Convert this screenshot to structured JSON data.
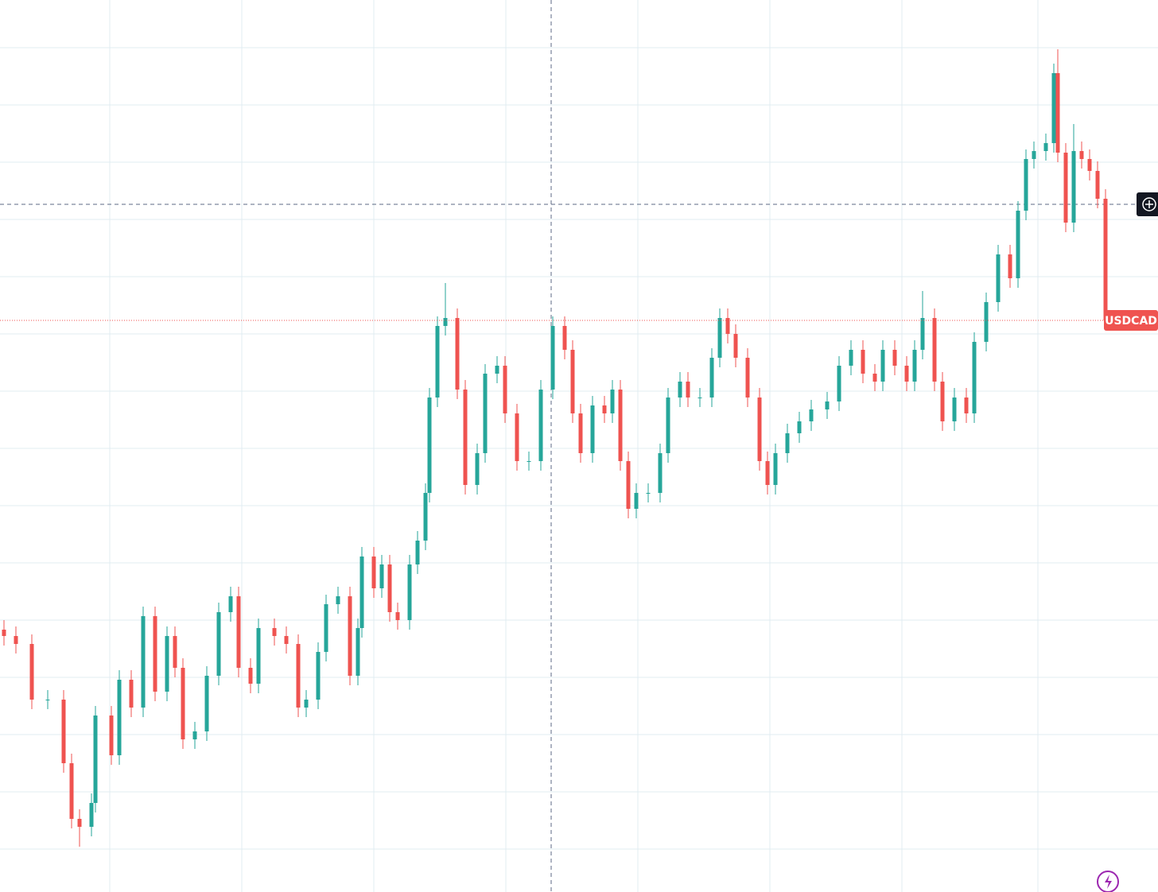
{
  "chart_data": {
    "type": "candlestick",
    "symbol": "USDCAD",
    "up_color": "#26a69a",
    "down_color": "#ef5350",
    "grid": true,
    "xlim": [
      0,
      1456
    ],
    "ylim": [
      0,
      1122
    ],
    "xticks": [
      138,
      304,
      470,
      636,
      802,
      968,
      1134,
      1305
    ],
    "yticks": [
      1062,
      990,
      918,
      846,
      774,
      702,
      630,
      558,
      486,
      414,
      342,
      270,
      198,
      126,
      54
    ],
    "x": [
      5,
      20,
      40,
      60,
      80,
      90,
      100,
      115,
      120,
      140,
      150,
      165,
      180,
      195,
      210,
      220,
      230,
      245,
      260,
      275,
      290,
      300,
      315,
      325,
      345,
      360,
      375,
      385,
      400,
      410,
      425,
      440,
      450,
      455,
      470,
      480,
      490,
      500,
      515,
      525,
      535,
      540,
      550,
      560,
      575,
      585,
      600,
      610,
      625,
      635,
      650,
      665,
      680,
      695,
      710,
      720,
      730,
      745,
      760,
      770,
      780,
      790,
      800,
      815,
      830,
      840,
      855,
      865,
      880,
      895,
      905,
      915,
      925,
      940,
      955,
      965,
      975,
      990,
      1005,
      1020,
      1040,
      1055,
      1070,
      1085,
      1100,
      1110,
      1125,
      1140,
      1150,
      1160,
      1175,
      1185,
      1200,
      1215,
      1225,
      1240,
      1255,
      1270,
      1280,
      1290,
      1300,
      1315,
      1325,
      1330,
      1340,
      1350,
      1360,
      1370,
      1380,
      1390
    ],
    "open": [
      330,
      322,
      312,
      242,
      242,
      162,
      92,
      82,
      112,
      222,
      172,
      267,
      232,
      347,
      252,
      322,
      282,
      192,
      202,
      272,
      352,
      372,
      282,
      262,
      332,
      322,
      312,
      232,
      242,
      302,
      362,
      372,
      272,
      332,
      422,
      382,
      412,
      352,
      342,
      412,
      442,
      502,
      622,
      712,
      722,
      632,
      512,
      552,
      652,
      662,
      602,
      542,
      542,
      632,
      712,
      682,
      602,
      552,
      612,
      602,
      632,
      542,
      482,
      502,
      502,
      552,
      622,
      642,
      622,
      622,
      672,
      722,
      702,
      672,
      622,
      542,
      512,
      552,
      577,
      592,
      607,
      617,
      662,
      682,
      652,
      642,
      682,
      662,
      642,
      682,
      722,
      642,
      592,
      622,
      602,
      692,
      742,
      802,
      772,
      857,
      922,
      932,
      942,
      1030,
      930,
      842,
      932,
      922,
      907,
      872
    ],
    "high": [
      342,
      334,
      324,
      254,
      254,
      174,
      104,
      124,
      234,
      234,
      279,
      279,
      359,
      359,
      334,
      334,
      294,
      214,
      284,
      364,
      384,
      384,
      294,
      344,
      344,
      334,
      324,
      254,
      314,
      374,
      384,
      384,
      344,
      434,
      434,
      424,
      424,
      364,
      424,
      454,
      514,
      634,
      724,
      766,
      734,
      644,
      564,
      664,
      674,
      674,
      614,
      554,
      644,
      724,
      724,
      694,
      614,
      624,
      624,
      644,
      644,
      554,
      514,
      514,
      564,
      634,
      654,
      654,
      634,
      684,
      734,
      734,
      714,
      684,
      634,
      554,
      564,
      589,
      604,
      619,
      629,
      674,
      694,
      694,
      664,
      694,
      694,
      674,
      694,
      756,
      734,
      654,
      634,
      634,
      704,
      754,
      814,
      814,
      869,
      934,
      944,
      954,
      1042,
      1060,
      942,
      966,
      944,
      934,
      919,
      884
    ],
    "low": [
      310,
      300,
      230,
      230,
      150,
      80,
      57,
      70,
      100,
      160,
      160,
      220,
      220,
      240,
      240,
      270,
      180,
      180,
      190,
      260,
      340,
      270,
      250,
      250,
      310,
      300,
      220,
      220,
      230,
      290,
      350,
      260,
      260,
      320,
      370,
      370,
      340,
      330,
      330,
      400,
      430,
      490,
      610,
      700,
      620,
      500,
      500,
      540,
      640,
      590,
      530,
      530,
      530,
      620,
      670,
      590,
      540,
      540,
      590,
      590,
      530,
      470,
      470,
      490,
      490,
      540,
      610,
      610,
      610,
      610,
      660,
      690,
      660,
      610,
      530,
      500,
      500,
      540,
      565,
      580,
      595,
      605,
      650,
      640,
      630,
      630,
      650,
      630,
      630,
      670,
      630,
      580,
      580,
      590,
      590,
      680,
      730,
      760,
      760,
      845,
      910,
      920,
      930,
      918,
      830,
      830,
      910,
      895,
      860,
      707
    ],
    "close": [
      322,
      312,
      242,
      242,
      162,
      92,
      82,
      112,
      222,
      172,
      267,
      232,
      347,
      252,
      322,
      282,
      192,
      202,
      272,
      352,
      372,
      282,
      262,
      332,
      322,
      312,
      232,
      242,
      302,
      362,
      372,
      272,
      332,
      422,
      382,
      412,
      352,
      342,
      412,
      442,
      502,
      622,
      712,
      722,
      632,
      512,
      552,
      652,
      662,
      602,
      542,
      542,
      632,
      712,
      682,
      602,
      552,
      612,
      602,
      632,
      542,
      482,
      502,
      502,
      552,
      622,
      642,
      622,
      622,
      672,
      722,
      702,
      672,
      622,
      542,
      512,
      552,
      577,
      592,
      607,
      617,
      662,
      682,
      652,
      642,
      682,
      662,
      642,
      682,
      722,
      642,
      592,
      622,
      602,
      692,
      742,
      802,
      772,
      857,
      922,
      932,
      942,
      1030,
      930,
      842,
      932,
      922,
      907,
      872,
      719
    ]
  }
}
